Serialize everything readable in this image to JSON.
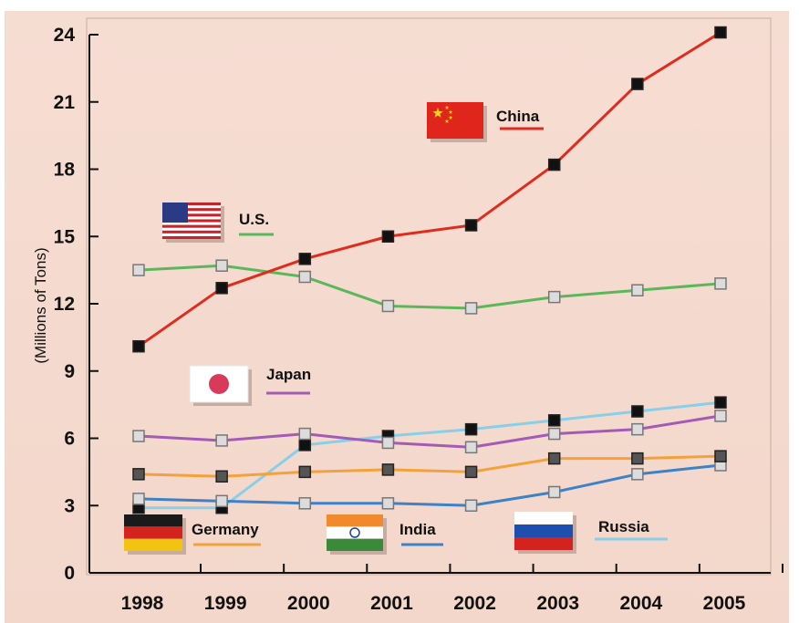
{
  "chart_data": {
    "type": "line",
    "ylabel": "(Millions of Tons)",
    "xlabel": "",
    "x": [
      "1998",
      "1999",
      "2000",
      "2001",
      "2002",
      "2003",
      "2004",
      "2005"
    ],
    "ylim": [
      0,
      24
    ],
    "yticks": [
      "0",
      "3",
      "6",
      "9",
      "12",
      "15",
      "18",
      "21",
      "24"
    ],
    "grid": false,
    "series": [
      {
        "name": "China",
        "color": "#e02b1f",
        "marker": "square-filled",
        "values": [
          10.1,
          12.7,
          14.0,
          15.0,
          15.5,
          18.2,
          21.8,
          24.1
        ]
      },
      {
        "name": "U.S.",
        "color": "#5bb85a",
        "marker": "square-open",
        "values": [
          13.5,
          13.7,
          13.2,
          11.9,
          11.8,
          12.3,
          12.6,
          12.9
        ]
      },
      {
        "name": "Japan",
        "color": "#a35bb6",
        "marker": "square-open",
        "values": [
          6.1,
          5.9,
          6.2,
          5.8,
          5.6,
          6.2,
          6.4,
          7.0
        ]
      },
      {
        "name": "Germany",
        "color": "#f3a23a",
        "marker": "square-filled",
        "values": [
          4.4,
          4.3,
          4.5,
          4.6,
          4.5,
          5.1,
          5.1,
          5.2
        ]
      },
      {
        "name": "India",
        "color": "#3b82c8",
        "marker": "square-open",
        "values": [
          3.3,
          3.2,
          3.1,
          3.1,
          3.0,
          3.6,
          4.4,
          4.8
        ]
      },
      {
        "name": "Russia",
        "color": "#88cfe8",
        "marker": "square-filled",
        "values": [
          2.9,
          2.9,
          5.7,
          6.1,
          6.4,
          6.8,
          7.2,
          7.6
        ]
      }
    ],
    "legend": [
      {
        "label": "China",
        "flag": "china-flag"
      },
      {
        "label": "U.S.",
        "flag": "us-flag"
      },
      {
        "label": "Japan",
        "flag": "japan-flag"
      },
      {
        "label": "Germany",
        "flag": "germany-flag"
      },
      {
        "label": "India",
        "flag": "india-flag"
      },
      {
        "label": "Russia",
        "flag": "russia-flag"
      }
    ]
  }
}
